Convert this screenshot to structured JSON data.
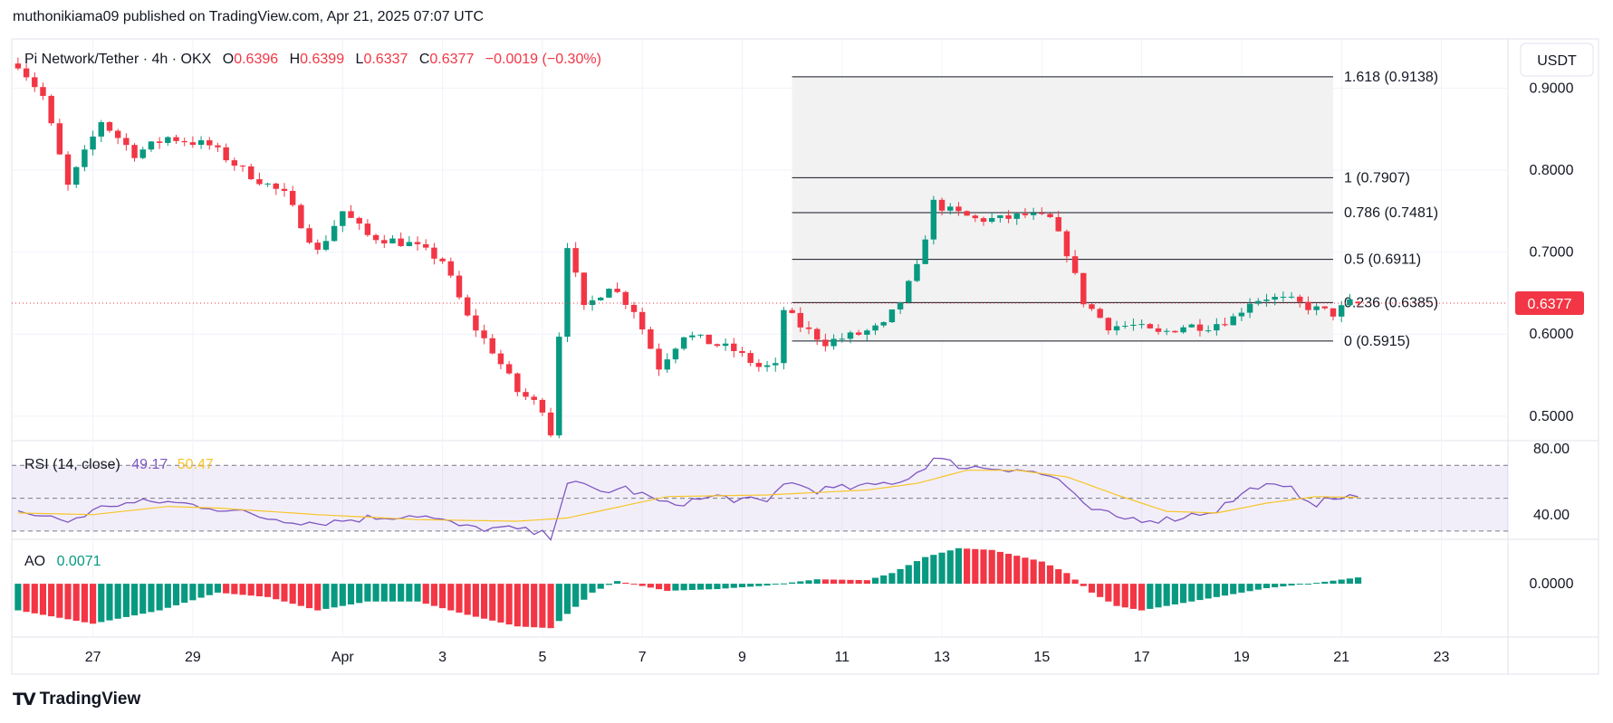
{
  "publish_line": "muthonikiama09 published on TradingView.com, Apr 21, 2025 07:07 UTC",
  "legend": {
    "symbol": "Pi Network/Tether · 4h · OKX",
    "o_label": "O",
    "o": "0.6396",
    "h_label": "H",
    "h": "0.6399",
    "l_label": "L",
    "l": "0.6337",
    "c_label": "C",
    "c": "0.6377",
    "change": "−0.0019 (−0.30%)"
  },
  "currency_button": "USDT",
  "last_price": "0.6377",
  "rsi_legend": {
    "label": "RSI (14, close)",
    "rsi": "49.17",
    "ma": "50.47"
  },
  "ao_legend": {
    "label": "AO",
    "value": "0.0071"
  },
  "brand": "TradingView",
  "colors": {
    "up": "#089981",
    "down": "#f23645",
    "rsi_line": "#7e57c2",
    "rsi_ma": "#f7c52a",
    "fib_zone": "#f2f2f2",
    "grid": "#f0f3fa",
    "text": "#131722"
  },
  "chart_data": [
    {
      "type": "candlestick",
      "title": "Pi Network/Tether · 4h · OKX",
      "ylim": [
        0.47,
        0.96
      ],
      "y_ticks": [
        "0.9000",
        "0.8000",
        "0.7000",
        "0.6000",
        "0.5000"
      ],
      "x_tick_labels": [
        "27",
        "29",
        "Apr",
        "3",
        "5",
        "7",
        "9",
        "11",
        "13",
        "15",
        "17",
        "19",
        "21",
        "23"
      ],
      "x_tick_dates": [
        "2025-03-27",
        "2025-03-29",
        "2025-04-01",
        "2025-04-03",
        "2025-04-05",
        "2025-04-07",
        "2025-04-09",
        "2025-04-11",
        "2025-04-13",
        "2025-04-15",
        "2025-04-17",
        "2025-04-19",
        "2025-04-21",
        "2025-04-23"
      ],
      "x_range": [
        "2025-03-25T09:00",
        "2025-04-24T08:00"
      ],
      "candle_interval_hours": 4,
      "first_candle": "2025-03-25T12:00",
      "anchors": [
        [
          "2025-03-25T12:00",
          0.93
        ],
        [
          "2025-03-26T00:00",
          0.89
        ],
        [
          "2025-03-26T12:00",
          0.78
        ],
        [
          "2025-03-27T04:00",
          0.86
        ],
        [
          "2025-03-27T20:00",
          0.82
        ],
        [
          "2025-03-28T12:00",
          0.84
        ],
        [
          "2025-03-29T08:00",
          0.83
        ],
        [
          "2025-03-30T00:00",
          0.8
        ],
        [
          "2025-03-30T20:00",
          0.77
        ],
        [
          "2025-03-31T12:00",
          0.7
        ],
        [
          "2025-04-01T00:00",
          0.75
        ],
        [
          "2025-04-01T12:00",
          0.72
        ],
        [
          "2025-04-02T08:00",
          0.71
        ],
        [
          "2025-04-03T00:00",
          0.69
        ],
        [
          "2025-04-03T12:00",
          0.62
        ],
        [
          "2025-04-04T00:00",
          0.58
        ],
        [
          "2025-04-04T12:00",
          0.53
        ],
        [
          "2025-04-05T00:00",
          0.51
        ],
        [
          "2025-04-05T04:00",
          0.48
        ],
        [
          "2025-04-05T08:00",
          0.6
        ],
        [
          "2025-04-05T12:00",
          0.71
        ],
        [
          "2025-04-05T20:00",
          0.63
        ],
        [
          "2025-04-06T08:00",
          0.66
        ],
        [
          "2025-04-06T20:00",
          0.63
        ],
        [
          "2025-04-07T08:00",
          0.56
        ],
        [
          "2025-04-07T20:00",
          0.6
        ],
        [
          "2025-04-08T08:00",
          0.59
        ],
        [
          "2025-04-08T20:00",
          0.58
        ],
        [
          "2025-04-09T08:00",
          0.56
        ],
        [
          "2025-04-09T16:00",
          0.56
        ],
        [
          "2025-04-09T20:00",
          0.63
        ],
        [
          "2025-04-10T04:00",
          0.61
        ],
        [
          "2025-04-10T16:00",
          0.59
        ],
        [
          "2025-04-11T08:00",
          0.6
        ],
        [
          "2025-04-11T20:00",
          0.61
        ],
        [
          "2025-04-12T04:00",
          0.64
        ],
        [
          "2025-04-12T12:00",
          0.68
        ],
        [
          "2025-04-12T20:00",
          0.76
        ],
        [
          "2025-04-13T04:00",
          0.75
        ],
        [
          "2025-04-13T16:00",
          0.74
        ],
        [
          "2025-04-14T04:00",
          0.74
        ],
        [
          "2025-04-14T16:00",
          0.745
        ],
        [
          "2025-04-15T04:00",
          0.74
        ],
        [
          "2025-04-15T12:00",
          0.7
        ],
        [
          "2025-04-15T20:00",
          0.64
        ],
        [
          "2025-04-16T08:00",
          0.61
        ],
        [
          "2025-04-16T20:00",
          0.61
        ],
        [
          "2025-04-17T08:00",
          0.6
        ],
        [
          "2025-04-17T20:00",
          0.61
        ],
        [
          "2025-04-18T08:00",
          0.61
        ],
        [
          "2025-04-18T20:00",
          0.62
        ],
        [
          "2025-04-19T04:00",
          0.64
        ],
        [
          "2025-04-19T12:00",
          0.645
        ],
        [
          "2025-04-20T00:00",
          0.64
        ],
        [
          "2025-04-20T12:00",
          0.63
        ],
        [
          "2025-04-20T20:00",
          0.625
        ],
        [
          "2025-04-21T04:00",
          0.638
        ],
        [
          "2025-04-21T08:00",
          0.6377
        ]
      ],
      "last_candle": {
        "open": 0.6396,
        "high": 0.6399,
        "low": 0.6337,
        "close": 0.6377
      },
      "fibonacci": {
        "start": "2025-04-10T00:00",
        "end": "2025-04-20T20:00",
        "levels": [
          {
            "ratio": "1.618",
            "price": 0.9138,
            "label": "1.618 (0.9138)"
          },
          {
            "ratio": "1",
            "price": 0.7907,
            "label": "1 (0.7907)"
          },
          {
            "ratio": "0.786",
            "price": 0.7481,
            "label": "0.786 (0.7481)"
          },
          {
            "ratio": "0.5",
            "price": 0.6911,
            "label": "0.5 (0.6911)"
          },
          {
            "ratio": "0.236",
            "price": 0.6385,
            "label": "0.236 (0.6385)"
          },
          {
            "ratio": "0",
            "price": 0.5915,
            "label": "0 (0.5915)"
          }
        ]
      }
    },
    {
      "type": "line",
      "title": "RSI (14, close)",
      "ylim": [
        25,
        85
      ],
      "y_ticks": [
        "80.00",
        "40.00"
      ],
      "band": [
        30,
        70
      ],
      "midline": 50,
      "series": [
        {
          "name": "RSI",
          "anchors": [
            [
              "2025-03-25T12:00",
              42
            ],
            [
              "2025-03-26T12:00",
              36
            ],
            [
              "2025-03-27T08:00",
              46
            ],
            [
              "2025-03-28T08:00",
              48
            ],
            [
              "2025-03-29T08:00",
              45
            ],
            [
              "2025-03-30T12:00",
              38
            ],
            [
              "2025-03-31T12:00",
              35
            ],
            [
              "2025-04-01T12:00",
              38
            ],
            [
              "2025-04-02T12:00",
              40
            ],
            [
              "2025-04-03T12:00",
              32
            ],
            [
              "2025-04-04T12:00",
              31
            ],
            [
              "2025-04-05T04:00",
              27
            ],
            [
              "2025-04-05T12:00",
              60
            ],
            [
              "2025-04-06T04:00",
              54
            ],
            [
              "2025-04-06T16:00",
              56
            ],
            [
              "2025-04-07T12:00",
              46
            ],
            [
              "2025-04-08T12:00",
              51
            ],
            [
              "2025-04-09T12:00",
              47
            ],
            [
              "2025-04-09T20:00",
              60
            ],
            [
              "2025-04-10T12:00",
              55
            ],
            [
              "2025-04-11T12:00",
              57
            ],
            [
              "2025-04-12T08:00",
              62
            ],
            [
              "2025-04-12T20:00",
              74
            ],
            [
              "2025-04-13T12:00",
              69
            ],
            [
              "2025-04-14T12:00",
              68
            ],
            [
              "2025-04-15T08:00",
              62
            ],
            [
              "2025-04-15T20:00",
              45
            ],
            [
              "2025-04-16T12:00",
              38
            ],
            [
              "2025-04-17T12:00",
              37
            ],
            [
              "2025-04-18T12:00",
              43
            ],
            [
              "2025-04-19T08:00",
              58
            ],
            [
              "2025-04-20T00:00",
              55
            ],
            [
              "2025-04-20T12:00",
              47
            ],
            [
              "2025-04-21T04:00",
              52
            ],
            [
              "2025-04-21T08:00",
              49.17
            ]
          ]
        },
        {
          "name": "RSI-based MA",
          "anchors": [
            [
              "2025-03-25T12:00",
              41
            ],
            [
              "2025-03-27T00:00",
              40
            ],
            [
              "2025-03-28T12:00",
              45
            ],
            [
              "2025-03-29T12:00",
              44
            ],
            [
              "2025-03-31T12:00",
              40
            ],
            [
              "2025-04-02T12:00",
              37
            ],
            [
              "2025-04-04T12:00",
              36
            ],
            [
              "2025-04-05T12:00",
              38
            ],
            [
              "2025-04-07T12:00",
              51
            ],
            [
              "2025-04-09T12:00",
              52
            ],
            [
              "2025-04-11T12:00",
              55
            ],
            [
              "2025-04-12T12:00",
              59
            ],
            [
              "2025-04-13T12:00",
              67
            ],
            [
              "2025-04-14T12:00",
              67
            ],
            [
              "2025-04-15T12:00",
              63
            ],
            [
              "2025-04-16T12:00",
              52
            ],
            [
              "2025-04-17T12:00",
              42
            ],
            [
              "2025-04-18T12:00",
              41
            ],
            [
              "2025-04-19T12:00",
              47
            ],
            [
              "2025-04-20T12:00",
              51
            ],
            [
              "2025-04-21T08:00",
              50.47
            ]
          ]
        }
      ]
    },
    {
      "type": "bar",
      "title": "AO",
      "ylim": [
        -0.06,
        0.05
      ],
      "y_ticks": [
        "0.0000"
      ],
      "anchors": [
        [
          "2025-03-25T12:00",
          -0.03
        ],
        [
          "2025-03-27T00:00",
          -0.045
        ],
        [
          "2025-03-28T08:00",
          -0.03
        ],
        [
          "2025-03-29T12:00",
          -0.01
        ],
        [
          "2025-03-30T12:00",
          -0.015
        ],
        [
          "2025-03-31T12:00",
          -0.03
        ],
        [
          "2025-04-01T12:00",
          -0.02
        ],
        [
          "2025-04-02T12:00",
          -0.02
        ],
        [
          "2025-04-03T12:00",
          -0.035
        ],
        [
          "2025-04-04T12:00",
          -0.048
        ],
        [
          "2025-04-05T04:00",
          -0.05
        ],
        [
          "2025-04-06T00:00",
          -0.01
        ],
        [
          "2025-04-06T12:00",
          0.003
        ],
        [
          "2025-04-07T12:00",
          -0.008
        ],
        [
          "2025-04-08T12:00",
          -0.006
        ],
        [
          "2025-04-09T12:00",
          -0.002
        ],
        [
          "2025-04-10T12:00",
          0.005
        ],
        [
          "2025-04-11T12:00",
          0.004
        ],
        [
          "2025-04-12T00:00",
          0.012
        ],
        [
          "2025-04-12T16:00",
          0.03
        ],
        [
          "2025-04-13T08:00",
          0.04
        ],
        [
          "2025-04-14T00:00",
          0.038
        ],
        [
          "2025-04-15T00:00",
          0.025
        ],
        [
          "2025-04-15T12:00",
          0.012
        ],
        [
          "2025-04-16T00:00",
          -0.01
        ],
        [
          "2025-04-16T12:00",
          -0.025
        ],
        [
          "2025-04-17T00:00",
          -0.03
        ],
        [
          "2025-04-17T12:00",
          -0.025
        ],
        [
          "2025-04-18T12:00",
          -0.015
        ],
        [
          "2025-04-19T12:00",
          -0.005
        ],
        [
          "2025-04-20T12:00",
          0.001
        ],
        [
          "2025-04-21T08:00",
          0.0071
        ]
      ]
    }
  ]
}
